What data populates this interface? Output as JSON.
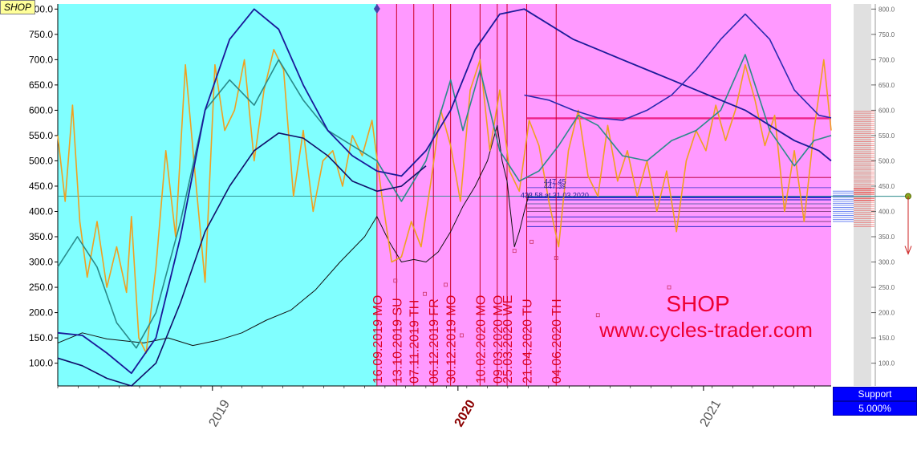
{
  "chart_data": {
    "type": "line",
    "title": "SHOP",
    "watermark": "www.cycles-trader.com",
    "ticker": "SHOP",
    "y_ticks": [
      "100.0",
      "150.0",
      "200.0",
      "250.0",
      "300.0",
      "350.0",
      "400.0",
      "450.0",
      "500.0",
      "550.0",
      "600.0",
      "650.0",
      "700.0",
      "750.0",
      "800.0"
    ],
    "scale_ticks": [
      "100.0",
      "150.0",
      "200.0",
      "250.0",
      "300.0",
      "350.0",
      "400.0",
      "450.0",
      "500.0",
      "550.0",
      "600.0",
      "650.0",
      "700.0",
      "750.0",
      "800.0"
    ],
    "ylim": [
      55,
      810
    ],
    "x_ticks": [
      {
        "label": "2019",
        "t": 0.63,
        "bold": false
      },
      {
        "label": "2020",
        "t": 1.63,
        "bold": true
      },
      {
        "label": "2021",
        "t": 2.63,
        "bold": false
      }
    ],
    "xlim": [
      0,
      3.15
    ],
    "regions": [
      {
        "from": 0,
        "to": 1.3,
        "color": "#80ffff"
      },
      {
        "from": 1.3,
        "to": 3.15,
        "color": "#ff99ff"
      }
    ],
    "cycle_dates": [
      {
        "label": "16.09.2019 MO",
        "t": 1.3
      },
      {
        "label": "13.10.2019 SU",
        "t": 1.38
      },
      {
        "label": "07.11.2019 TH",
        "t": 1.45
      },
      {
        "label": "06.12.2019 FR",
        "t": 1.53
      },
      {
        "label": "30.12.2019 MO",
        "t": 1.6
      },
      {
        "label": "10.02.2020 MO",
        "t": 1.72
      },
      {
        "label": "09.03.2020 MO",
        "t": 1.79
      },
      {
        "label": "25.03.2020 WE",
        "t": 1.83
      },
      {
        "label": "21.04.2020 TU",
        "t": 1.91
      },
      {
        "label": "04.06.2020 TH",
        "t": 2.03
      }
    ],
    "hlines": [
      {
        "y": 629,
        "color": "#dd2288",
        "width": 1.2
      },
      {
        "y": 584,
        "color": "#ee2288",
        "width": 2.4
      },
      {
        "y": 467,
        "color": "#cc2266",
        "width": 1.2
      },
      {
        "y": 447,
        "color": "#3333cc",
        "width": 0.8
      },
      {
        "y": 428,
        "color": "#2222cc",
        "width": 2.2
      },
      {
        "y": 423,
        "color": "#3333cc",
        "width": 1.2
      },
      {
        "y": 415,
        "color": "#6666aa",
        "width": 1
      },
      {
        "y": 407,
        "color": "#884488",
        "width": 1
      },
      {
        "y": 400,
        "color": "#884488",
        "width": 1
      },
      {
        "y": 389,
        "color": "#3333cc",
        "width": 1
      },
      {
        "y": 380,
        "color": "#884488",
        "width": 1
      },
      {
        "y": 370,
        "color": "#3333cc",
        "width": 1
      }
    ],
    "annotations": [
      {
        "text": "447.45",
        "t": 1.98,
        "y": 454
      },
      {
        "text": "447.3s",
        "t": 1.98,
        "y": 445
      },
      {
        "text": "433.58 at 31.03.2020",
        "t": 1.885,
        "y": 427
      }
    ],
    "small_markers": [
      {
        "t": 1.375,
        "y": 263
      },
      {
        "t": 1.495,
        "y": 237
      },
      {
        "t": 1.58,
        "y": 255
      },
      {
        "t": 1.645,
        "y": 155
      },
      {
        "t": 1.86,
        "y": 322
      },
      {
        "t": 1.93,
        "y": 340
      },
      {
        "t": 2.03,
        "y": 308
      },
      {
        "t": 2.2,
        "y": 195
      },
      {
        "t": 2.49,
        "y": 250
      }
    ],
    "horizontal_ref": {
      "y": 430,
      "color": "#2a8a8a"
    },
    "current_price": {
      "y": 430
    },
    "series": [
      {
        "name": "",
        "color": "#111111",
        "width": 1,
        "kind": "price",
        "points": [
          [
            0,
            140
          ],
          [
            0.1,
            160
          ],
          [
            0.2,
            148
          ],
          [
            0.35,
            140
          ],
          [
            0.45,
            150
          ],
          [
            0.55,
            135
          ],
          [
            0.65,
            145
          ],
          [
            0.75,
            160
          ],
          [
            0.85,
            185
          ],
          [
            0.95,
            205
          ],
          [
            1.05,
            245
          ],
          [
            1.15,
            300
          ],
          [
            1.25,
            350
          ],
          [
            1.3,
            390
          ],
          [
            1.35,
            340
          ],
          [
            1.4,
            300
          ],
          [
            1.45,
            305
          ],
          [
            1.5,
            300
          ],
          [
            1.55,
            320
          ],
          [
            1.6,
            360
          ],
          [
            1.65,
            410
          ],
          [
            1.7,
            450
          ],
          [
            1.75,
            500
          ],
          [
            1.79,
            570
          ],
          [
            1.81,
            500
          ],
          [
            1.83,
            460
          ],
          [
            1.86,
            330
          ],
          [
            1.88,
            360
          ],
          [
            1.9,
            400
          ],
          [
            1.92,
            435
          ]
        ]
      },
      {
        "name": "",
        "color": "#f0a020",
        "width": 1.6,
        "kind": "orange",
        "points": [
          [
            0,
            550
          ],
          [
            0.03,
            420
          ],
          [
            0.06,
            610
          ],
          [
            0.09,
            380
          ],
          [
            0.12,
            270
          ],
          [
            0.16,
            380
          ],
          [
            0.2,
            250
          ],
          [
            0.24,
            330
          ],
          [
            0.28,
            240
          ],
          [
            0.3,
            390
          ],
          [
            0.33,
            150
          ],
          [
            0.36,
            120
          ],
          [
            0.4,
            290
          ],
          [
            0.44,
            520
          ],
          [
            0.48,
            350
          ],
          [
            0.52,
            690
          ],
          [
            0.56,
            470
          ],
          [
            0.6,
            260
          ],
          [
            0.64,
            690
          ],
          [
            0.68,
            560
          ],
          [
            0.72,
            600
          ],
          [
            0.76,
            700
          ],
          [
            0.8,
            500
          ],
          [
            0.84,
            640
          ],
          [
            0.88,
            720
          ],
          [
            0.92,
            680
          ],
          [
            0.96,
            430
          ],
          [
            1.0,
            560
          ],
          [
            1.04,
            400
          ],
          [
            1.08,
            500
          ],
          [
            1.12,
            520
          ],
          [
            1.16,
            450
          ],
          [
            1.2,
            550
          ],
          [
            1.24,
            510
          ],
          [
            1.28,
            580
          ],
          [
            1.32,
            430
          ],
          [
            1.36,
            300
          ],
          [
            1.4,
            310
          ],
          [
            1.44,
            380
          ],
          [
            1.48,
            330
          ],
          [
            1.52,
            460
          ],
          [
            1.56,
            600
          ],
          [
            1.6,
            530
          ],
          [
            1.64,
            420
          ],
          [
            1.68,
            640
          ],
          [
            1.72,
            700
          ],
          [
            1.76,
            520
          ],
          [
            1.8,
            640
          ],
          [
            1.84,
            480
          ],
          [
            1.88,
            440
          ],
          [
            1.92,
            580
          ],
          [
            1.96,
            530
          ],
          [
            2.0,
            420
          ],
          [
            2.04,
            330
          ],
          [
            2.08,
            520
          ],
          [
            2.12,
            600
          ],
          [
            2.16,
            470
          ],
          [
            2.2,
            430
          ],
          [
            2.24,
            570
          ],
          [
            2.28,
            460
          ],
          [
            2.32,
            520
          ],
          [
            2.36,
            430
          ],
          [
            2.4,
            500
          ],
          [
            2.44,
            400
          ],
          [
            2.48,
            480
          ],
          [
            2.52,
            360
          ],
          [
            2.56,
            500
          ],
          [
            2.6,
            560
          ],
          [
            2.64,
            520
          ],
          [
            2.68,
            610
          ],
          [
            2.72,
            540
          ],
          [
            2.76,
            600
          ],
          [
            2.8,
            690
          ],
          [
            2.84,
            620
          ],
          [
            2.88,
            530
          ],
          [
            2.92,
            590
          ],
          [
            2.96,
            400
          ],
          [
            3.0,
            520
          ],
          [
            3.04,
            380
          ],
          [
            3.08,
            560
          ],
          [
            3.12,
            700
          ],
          [
            3.15,
            560
          ]
        ]
      },
      {
        "name": "",
        "color": "#2a8a8a",
        "width": 1.6,
        "kind": "teal",
        "points": [
          [
            0,
            290
          ],
          [
            0.08,
            350
          ],
          [
            0.16,
            290
          ],
          [
            0.24,
            180
          ],
          [
            0.32,
            130
          ],
          [
            0.4,
            200
          ],
          [
            0.5,
            380
          ],
          [
            0.6,
            600
          ],
          [
            0.7,
            660
          ],
          [
            0.8,
            610
          ],
          [
            0.9,
            700
          ],
          [
            1.0,
            620
          ],
          [
            1.1,
            560
          ],
          [
            1.2,
            530
          ],
          [
            1.3,
            500
          ],
          [
            1.4,
            420
          ],
          [
            1.5,
            500
          ],
          [
            1.6,
            660
          ],
          [
            1.65,
            560
          ],
          [
            1.72,
            680
          ],
          [
            1.8,
            520
          ],
          [
            1.88,
            460
          ],
          [
            1.96,
            480
          ],
          [
            2.04,
            530
          ],
          [
            2.12,
            590
          ],
          [
            2.2,
            570
          ],
          [
            2.3,
            510
          ],
          [
            2.4,
            500
          ],
          [
            2.5,
            540
          ],
          [
            2.6,
            560
          ],
          [
            2.7,
            600
          ],
          [
            2.8,
            710
          ],
          [
            2.9,
            560
          ],
          [
            3.0,
            490
          ],
          [
            3.08,
            540
          ],
          [
            3.15,
            550
          ]
        ]
      },
      {
        "name": "",
        "color": "#1a1a99",
        "width": 1.8,
        "kind": "blue1",
        "points": [
          [
            0,
            160
          ],
          [
            0.1,
            155
          ],
          [
            0.2,
            120
          ],
          [
            0.3,
            80
          ],
          [
            0.4,
            150
          ],
          [
            0.5,
            350
          ],
          [
            0.6,
            600
          ],
          [
            0.7,
            740
          ],
          [
            0.8,
            800
          ],
          [
            0.9,
            760
          ],
          [
            1.0,
            650
          ],
          [
            1.1,
            560
          ],
          [
            1.2,
            510
          ],
          [
            1.3,
            480
          ],
          [
            1.4,
            470
          ],
          [
            1.5,
            520
          ],
          [
            1.6,
            600
          ],
          [
            1.7,
            720
          ],
          [
            1.8,
            790
          ],
          [
            1.9,
            800
          ],
          [
            2.0,
            770
          ],
          [
            2.1,
            740
          ],
          [
            2.2,
            720
          ],
          [
            2.3,
            700
          ],
          [
            2.4,
            680
          ],
          [
            2.5,
            660
          ],
          [
            2.6,
            640
          ],
          [
            2.7,
            620
          ],
          [
            2.8,
            600
          ],
          [
            2.9,
            570
          ],
          [
            3.0,
            540
          ],
          [
            3.1,
            520
          ],
          [
            3.15,
            500
          ]
        ]
      },
      {
        "name": "",
        "color": "#10106a",
        "width": 1.6,
        "kind": "blue2",
        "points": [
          [
            0,
            110
          ],
          [
            0.1,
            95
          ],
          [
            0.2,
            70
          ],
          [
            0.3,
            55
          ],
          [
            0.4,
            100
          ],
          [
            0.5,
            220
          ],
          [
            0.6,
            360
          ],
          [
            0.7,
            450
          ],
          [
            0.8,
            520
          ],
          [
            0.9,
            555
          ],
          [
            1.0,
            545
          ],
          [
            1.1,
            510
          ],
          [
            1.2,
            460
          ],
          [
            1.3,
            440
          ],
          [
            1.4,
            450
          ],
          [
            1.5,
            490
          ]
        ]
      },
      {
        "name": "",
        "color": "#2a2ab0",
        "width": 1.6,
        "kind": "blue3",
        "points": [
          [
            1.9,
            630
          ],
          [
            2.0,
            620
          ],
          [
            2.1,
            600
          ],
          [
            2.2,
            585
          ],
          [
            2.3,
            580
          ],
          [
            2.4,
            600
          ],
          [
            2.5,
            630
          ],
          [
            2.6,
            680
          ],
          [
            2.7,
            740
          ],
          [
            2.8,
            790
          ],
          [
            2.9,
            740
          ],
          [
            3.0,
            640
          ],
          [
            3.1,
            590
          ],
          [
            3.15,
            585
          ]
        ]
      }
    ]
  },
  "side_panel": {
    "support_label": "Support",
    "support_value": "5.000%"
  }
}
